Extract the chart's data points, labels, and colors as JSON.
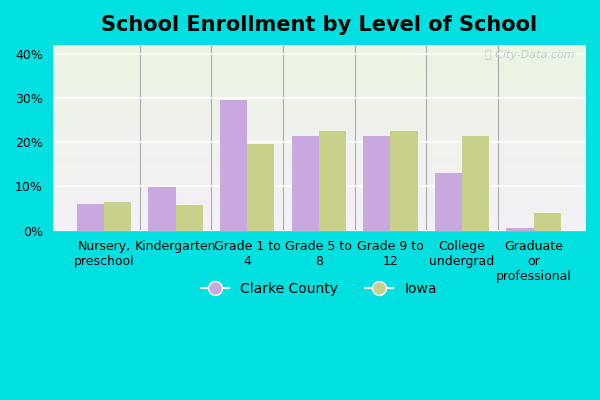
{
  "title": "School Enrollment by Level of School",
  "categories": [
    "Nursery,\npreschool",
    "Kindergarten",
    "Grade 1 to\n4",
    "Grade 5 to\n8",
    "Grade 9 to\n12",
    "College\nundergrad",
    "Graduate\nor\nprofessional"
  ],
  "clarke_county": [
    6.0,
    9.8,
    29.5,
    21.5,
    21.5,
    13.0,
    0.5
  ],
  "iowa": [
    6.5,
    5.8,
    19.5,
    22.5,
    22.5,
    21.5,
    4.0
  ],
  "clarke_color": "#c9a8e0",
  "iowa_color": "#c8d08a",
  "ylim": [
    0,
    42
  ],
  "yticks": [
    0,
    10,
    20,
    30,
    40
  ],
  "ytick_labels": [
    "0%",
    "10%",
    "20%",
    "30%",
    "40%"
  ],
  "legend_clarke": "Clarke County",
  "legend_iowa": "Iowa",
  "background_top": "#eaf5e2",
  "background_bottom": "#f5f0f8",
  "fig_bg": "#00e0e0",
  "bar_width": 0.38,
  "title_fontsize": 15,
  "axis_fontsize": 9,
  "legend_fontsize": 10
}
